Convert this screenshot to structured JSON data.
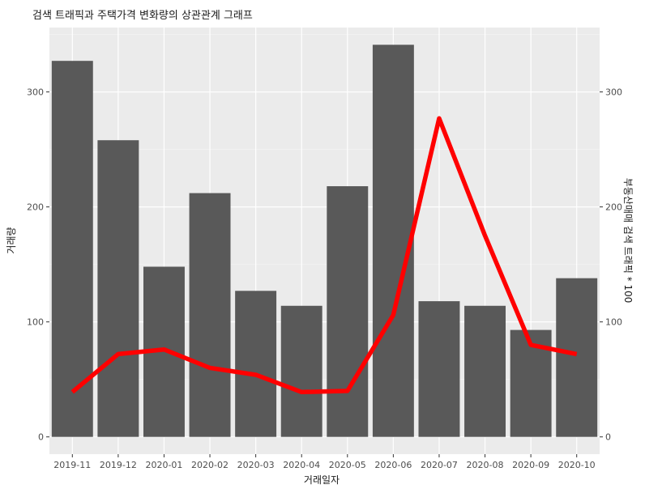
{
  "chart_data": {
    "type": "bar",
    "title": "검색 트래픽과 주택가격 변화량의 상관관계 그래프",
    "xlabel": "거래일자",
    "ylabel": "거래량",
    "y2label": "부동산매매 검색 트래픽 * 100",
    "categories": [
      "2019-11",
      "2019-12",
      "2020-01",
      "2020-02",
      "2020-03",
      "2020-04",
      "2020-05",
      "2020-06",
      "2020-07",
      "2020-08",
      "2020-09",
      "2020-10"
    ],
    "ylim": [
      -15,
      356
    ],
    "y_ticks": [
      0,
      100,
      200,
      300
    ],
    "y2_ticks": [
      0,
      100,
      200,
      300
    ],
    "grid": true,
    "series": [
      {
        "type": "bar",
        "axis": "left",
        "color": "#595959",
        "values": [
          327,
          258,
          148,
          212,
          127,
          114,
          218,
          341,
          118,
          114,
          93,
          138
        ]
      },
      {
        "type": "line",
        "axis": "right",
        "color": "#ff0000",
        "values": [
          39,
          72,
          76,
          60,
          54,
          39,
          40,
          106,
          277,
          175,
          80,
          72
        ]
      }
    ]
  }
}
